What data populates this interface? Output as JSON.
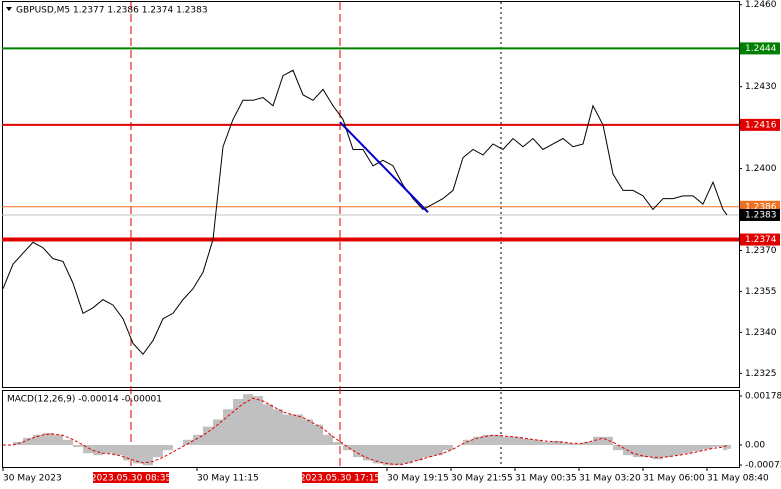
{
  "chart_data": [
    {
      "type": "line",
      "title": "GBPUSD,M5  1.2377 1.2386 1.2374 1.2383",
      "x": [
        0,
        5,
        10,
        15,
        20,
        25,
        30,
        35,
        40,
        45,
        50,
        55,
        60,
        65,
        70,
        75,
        80,
        85,
        90,
        95,
        100,
        105,
        110,
        115,
        120,
        125,
        130,
        135,
        140,
        145,
        150,
        155,
        160,
        165,
        170,
        175,
        180,
        185,
        190,
        195,
        200,
        205,
        210,
        215,
        220,
        225,
        230,
        235,
        240,
        245,
        250,
        255,
        260,
        265,
        270,
        275,
        280,
        285,
        290,
        295,
        300,
        305,
        310,
        315,
        320,
        325,
        330,
        335,
        340,
        345,
        350,
        355,
        360,
        362
      ],
      "values": [
        1.2356,
        1.2365,
        1.2369,
        1.2373,
        1.2371,
        1.2367,
        1.2366,
        1.2358,
        1.2347,
        1.2349,
        1.2352,
        1.235,
        1.2345,
        1.2336,
        1.2332,
        1.2337,
        1.2345,
        1.2347,
        1.2352,
        1.2356,
        1.2362,
        1.2374,
        1.2408,
        1.2418,
        1.2425,
        1.2425,
        1.2426,
        1.2423,
        1.2434,
        1.2436,
        1.2427,
        1.2425,
        1.2429,
        1.2423,
        1.2418,
        1.2407,
        1.2407,
        1.2401,
        1.2403,
        1.2401,
        1.2394,
        1.2389,
        1.2385,
        1.2387,
        1.2389,
        1.2392,
        1.2404,
        1.2407,
        1.2405,
        1.2409,
        1.2407,
        1.2411,
        1.2408,
        1.2411,
        1.2407,
        1.2409,
        1.2411,
        1.2408,
        1.2409,
        1.2423,
        1.2416,
        1.2398,
        1.2392,
        1.2392,
        1.239,
        1.2385,
        1.2389,
        1.2389,
        1.239,
        1.239,
        1.2387,
        1.2395,
        1.2385,
        1.2383
      ],
      "color": "#000000",
      "xlim": [
        0,
        368
      ],
      "ylim": [
        1.232,
        1.2461
      ],
      "yticks": [
        {
          "value": 1.246,
          "label": "1.2460"
        },
        {
          "value": 1.243,
          "label": "1.2430"
        },
        {
          "value": 1.24,
          "label": "1.2400"
        },
        {
          "value": 1.237,
          "label": "1.2370"
        },
        1.2355,
        {
          "value": 1.234,
          "label": "1.2340"
        },
        1.2325
      ],
      "xticks": [
        {
          "value": 0,
          "label": "30 May 2023"
        },
        {
          "value": 97,
          "label": "30 May 11:15"
        },
        {
          "value": 192,
          "label": "30 May 19:15"
        },
        {
          "value": 224,
          "label": "30 May 21:55"
        },
        {
          "value": 256,
          "label": "31 May 00:35"
        },
        {
          "value": 288,
          "label": "31 May 03:20"
        },
        {
          "value": 320,
          "label": "31 May 06:00"
        },
        {
          "value": 352,
          "label": "31 May 08:40"
        }
      ],
      "levels": [
        {
          "value": 1.2444,
          "color": "#008000"
        },
        {
          "value": 1.2416,
          "color": "#e00000"
        },
        {
          "value": 1.2386,
          "color": "#f07020"
        },
        {
          "value": 1.2383,
          "color": "#000000"
        },
        {
          "value": 1.2374,
          "color": "#e00000"
        }
      ],
      "vlines": [
        {
          "x": 64,
          "label": "2023.05.30 08:35",
          "color": "#e00000"
        },
        {
          "x": 168.5,
          "label": "2023.05.30 17:15",
          "color": "#e00000"
        },
        {
          "x": 249,
          "color": "#000000"
        }
      ],
      "trendline": {
        "x": [
          168.5,
          212.5
        ],
        "values": [
          1.2417,
          1.2384
        ],
        "color": "#0000cc"
      }
    },
    {
      "type": "macd",
      "title": "MACD(12,26,9) -0.00014 -0.00001",
      "ylim": [
        -0.0008,
        0.002
      ],
      "yticks": [
        0.00178,
        {
          "value": 0,
          "label": "0.00"
        },
        -0.00073
      ],
      "series": [
        {
          "name": "MACD",
          "color": "#c0c0c0",
          "values": [
            0,
            0.00011,
            0.00026,
            0.00037,
            0.00044,
            0.00037,
            0.00019,
            -7e-05,
            -0.0003,
            -0.00037,
            -0.0003,
            -0.00037,
            -0.00056,
            -0.00067,
            -0.00074,
            -0.00044,
            -0.00019,
            0,
            0.00019,
            0.00037,
            0.00067,
            0.00093,
            0.0013,
            0.00167,
            0.00185,
            0.00178,
            0.00148,
            0.0013,
            0.00111,
            0.00111,
            0.00093,
            0.00074,
            0.00037,
            0.00011,
            -0.00019,
            -0.00044,
            -0.00056,
            -0.00067,
            -0.00074,
            -0.00074,
            -0.00067,
            -0.00056,
            -0.00044,
            -0.00037,
            -0.00019,
            0,
            0.00019,
            0.0003,
            0.00037,
            0.00037,
            0.0003,
            0.0003,
            0.00022,
            0.00019,
            0.00011,
            0.00015,
            7e-05,
            4e-05,
            0.00011,
            0.0003,
            0.0003,
            -0.00019,
            -0.00037,
            -0.00044,
            -0.00044,
            -0.00052,
            -0.00044,
            -0.00037,
            -0.0003,
            -0.00022,
            -0.00015,
            -7e-05,
            -0.00019,
            -0.00014
          ]
        },
        {
          "name": "Signal",
          "color": "#e00000",
          "values": [
            0,
            0,
            0.00011,
            0.00026,
            0.00037,
            0.0004,
            0.00035,
            0.0002,
            0,
            -0.0002,
            -0.0003,
            -0.00033,
            -0.00042,
            -0.00055,
            -0.00065,
            -0.0006,
            -0.00045,
            -0.00025,
            -5e-05,
            0.00015,
            0.00035,
            0.0006,
            0.0009,
            0.0012,
            0.0015,
            0.0017,
            0.0016,
            0.0014,
            0.0012,
            0.0011,
            0.001,
            0.0008,
            0.0006,
            0.0003,
            5e-05,
            -0.0002,
            -0.0004,
            -0.00055,
            -0.00065,
            -0.0007,
            -0.0007,
            -0.0006,
            -0.0005,
            -0.0004,
            -0.0003,
            -0.00015,
            5e-05,
            0.0002,
            0.0003,
            0.00035,
            0.00033,
            0.0003,
            0.00025,
            0.0002,
            0.00015,
            0.00012,
            0.0001,
            6e-05,
            6e-05,
            0.00015,
            0.00025,
            0.0001,
            -0.0001,
            -0.0003,
            -0.0004,
            -0.00045,
            -0.00045,
            -0.0004,
            -0.00035,
            -0.00028,
            -0.0002,
            -0.00012,
            -8e-05,
            -1e-05
          ]
        }
      ]
    }
  ]
}
